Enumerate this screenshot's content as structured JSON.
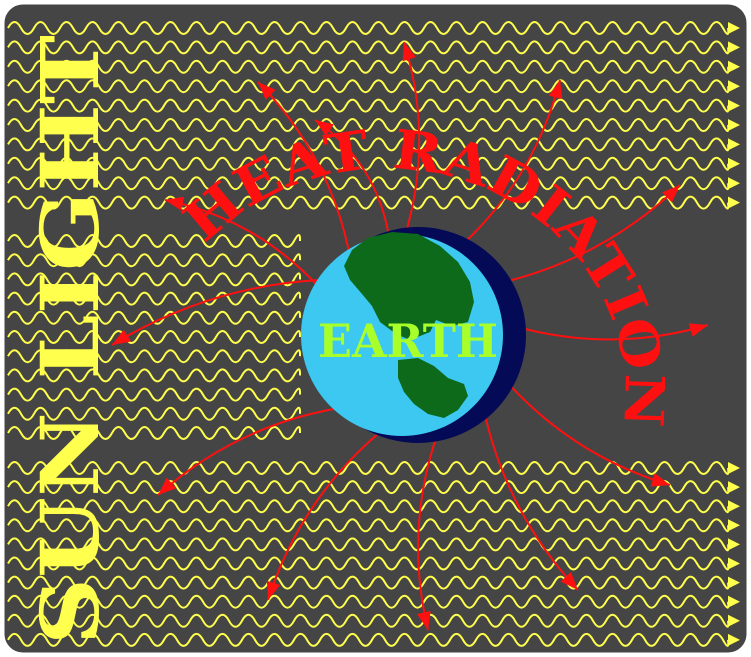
{
  "labels": {
    "sunlight": "SUN LIGHT",
    "heat_radiation": "HEAT RADIATION",
    "earth": "EARTH"
  },
  "colors": {
    "background": "#454545",
    "frame": "#ffffff",
    "sun_wave": "#ffff4d",
    "sunlight_text": "#ffff4d",
    "heat_arrow": "#ff1010",
    "heat_text": "#ff1010",
    "ocean": "#3cc8f0",
    "land": "#0d6a1a",
    "night_side": "#040a55",
    "earth_text": "#a8ff2a"
  }
}
